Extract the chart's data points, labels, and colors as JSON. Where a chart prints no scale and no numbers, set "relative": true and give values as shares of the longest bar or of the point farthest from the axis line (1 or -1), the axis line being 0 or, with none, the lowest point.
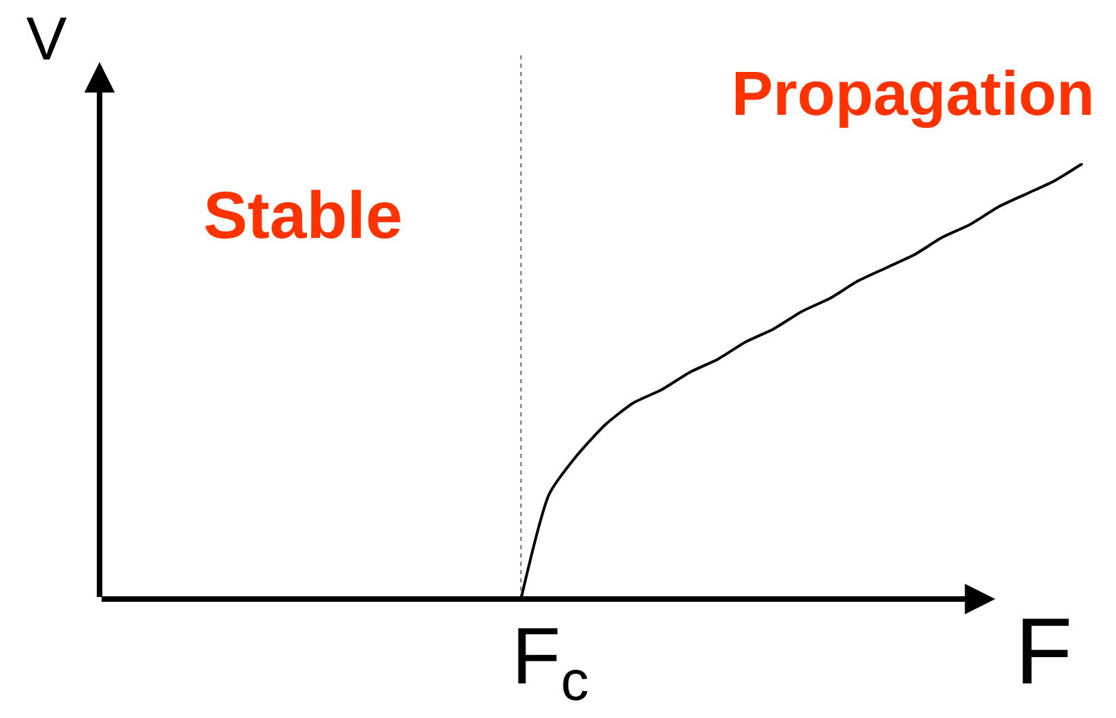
{
  "chart_data": {
    "type": "line",
    "relative": true,
    "xlabel": "F",
    "ylabel": "V",
    "annotations": [
      "Stable",
      "Propagation",
      "F$_{c}$"
    ],
    "categories": [
      null,
      null,
      null,
      null,
      null,
      null,
      null,
      null,
      null,
      null,
      null,
      null,
      null,
      null,
      null,
      null,
      null,
      null,
      null,
      null,
      null,
      null,
      null,
      null,
      null,
      null,
      null,
      null,
      null,
      null,
      null,
      null,
      null,
      null,
      null,
      null
    ],
    "series": [
      {
        "color": "#000000",
        "values": [
          null,
          null,
          null,
          null,
          null,
          null,
          null,
          null,
          null,
          null,
          null,
          null,
          null,
          null,
          null,
          0,
          0.24,
          0.33,
          0.4,
          0.45,
          0.48,
          0.52,
          0.55,
          0.59,
          0.62,
          0.66,
          0.69,
          0.73,
          0.76,
          0.79,
          0.83,
          0.86,
          0.9,
          0.93,
          0.96,
          1.0
        ]
      }
    ]
  }
}
